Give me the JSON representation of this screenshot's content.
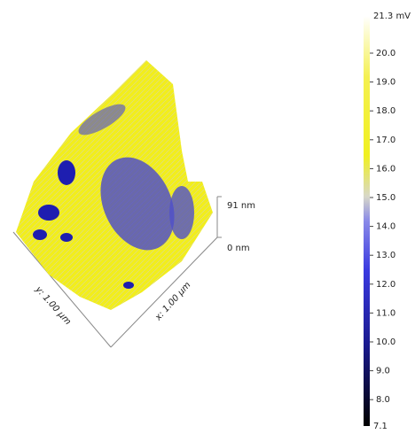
{
  "colorbar": {
    "max_label": "21.3 mV",
    "ticks": [
      "20.0",
      "19.0",
      "18.0",
      "17.0",
      "16.0",
      "15.0",
      "14.0",
      "13.0",
      "12.0",
      "11.0",
      "10.0",
      "9.0",
      "8.0"
    ],
    "min_label": "7.1"
  },
  "axes": {
    "z_top": "91 nm",
    "z_bottom": "0 nm",
    "y_label": "y: 1.00 µm",
    "x_label": "x: 1.00 µm"
  }
}
